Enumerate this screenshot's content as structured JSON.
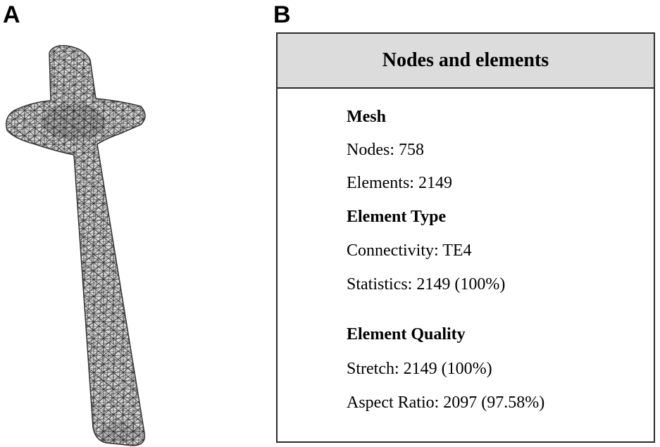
{
  "panels": {
    "a_label": "A",
    "b_label": "B"
  },
  "table": {
    "title": "Nodes and elements",
    "mesh": {
      "heading": "Mesh",
      "nodes": "Nodes: 758",
      "elements": "Elements: 2149"
    },
    "element_type": {
      "heading": "Element Type",
      "connectivity": "Connectivity: TE4",
      "statistics": "Statistics: 2149 (100%)"
    },
    "element_quality": {
      "heading": "Element Quality",
      "stretch": "Stretch: 2149 (100%)",
      "aspect_ratio": "Aspect Ratio: 2097 (97.58%)"
    }
  },
  "colors": {
    "header_fill": "#dcdcdc",
    "border": "#2b2b2b",
    "mesh_line": "#222222"
  },
  "icons": {
    "figure_a": "tetrahedral-mesh-screw-model"
  }
}
